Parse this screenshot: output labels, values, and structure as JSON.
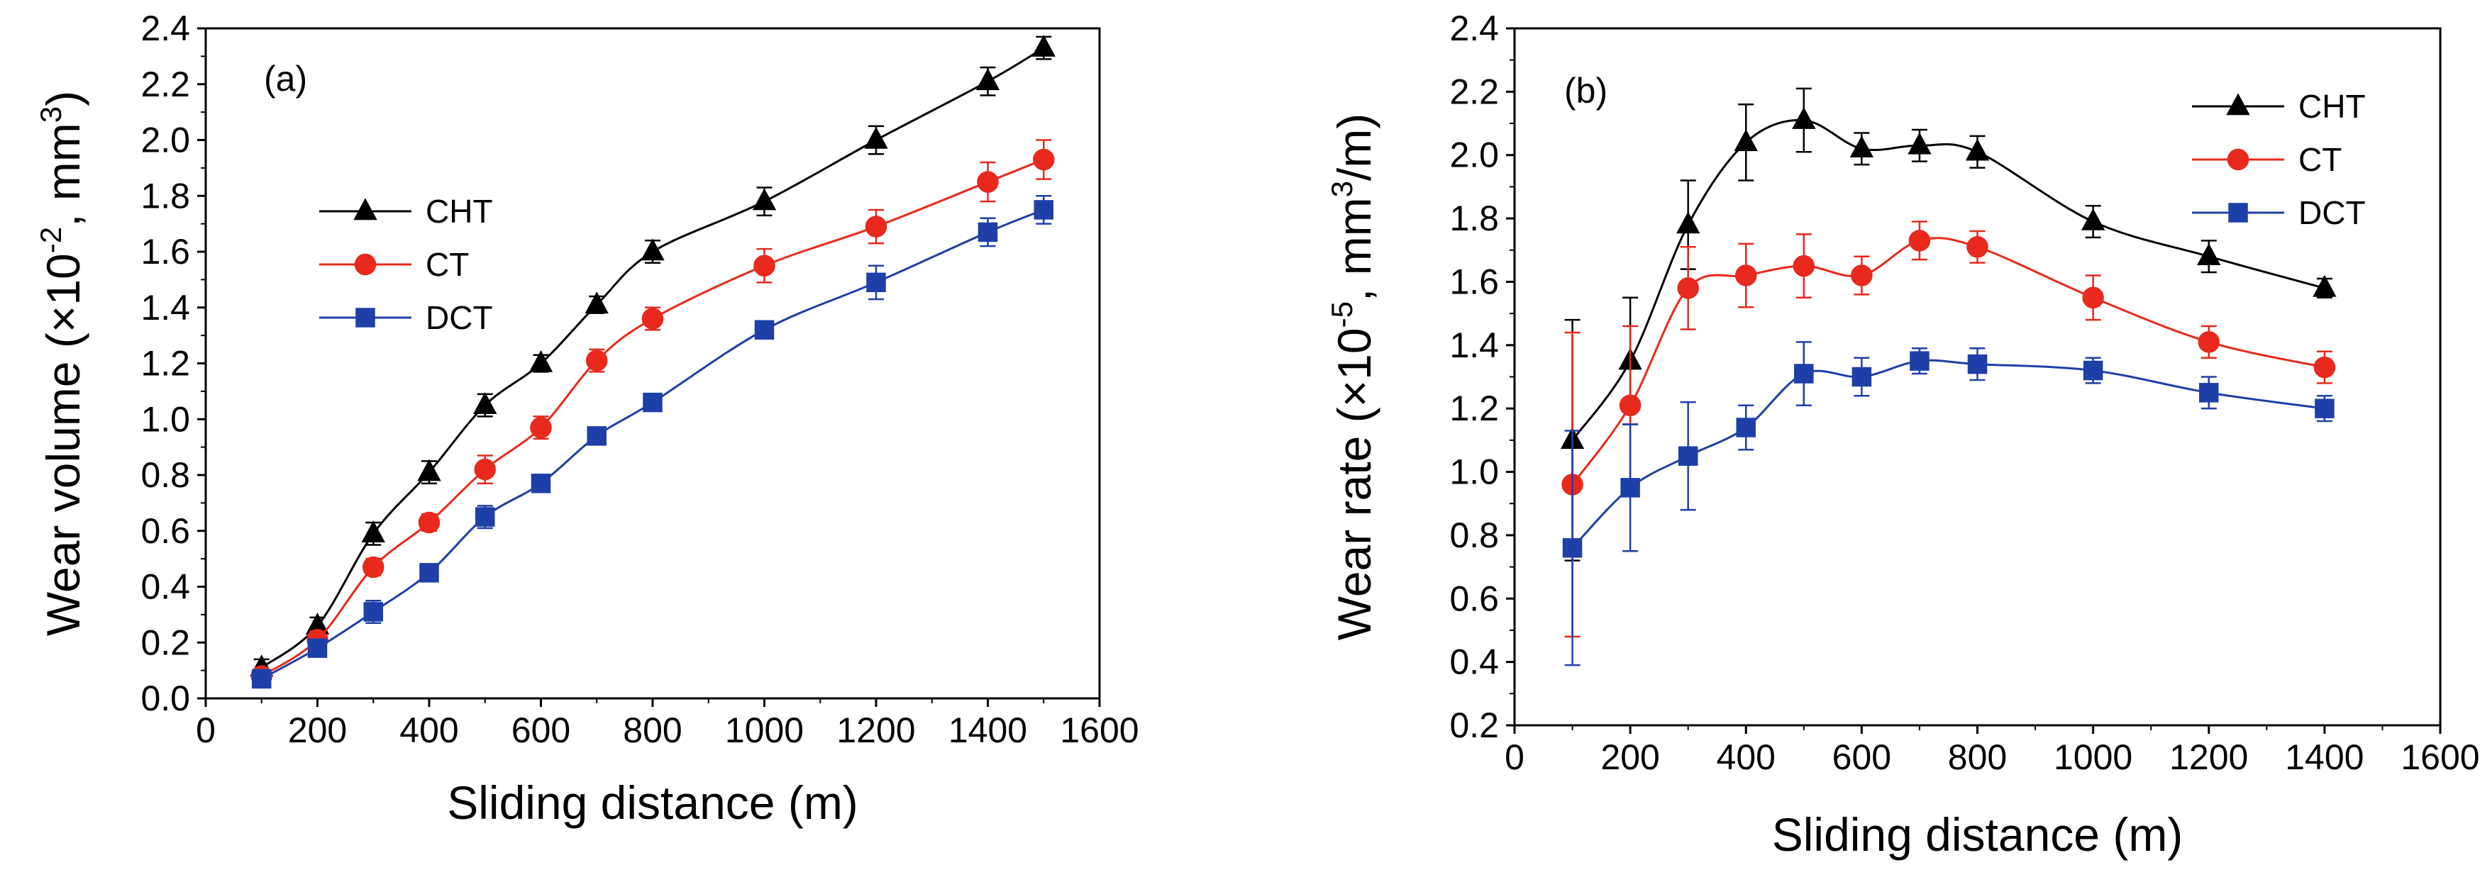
{
  "chart_data": [
    {
      "type": "line",
      "panel_label": "(a)",
      "xlabel": "Sliding distance (m)",
      "ylabel_main": "Wear volume (×10",
      "ylabel_exp1": "-2",
      "ylabel_mid": ", mm",
      "ylabel_exp2": "3",
      "ylabel_end": ")",
      "xlim": [
        0,
        1600
      ],
      "ylim": [
        0,
        2.4
      ],
      "xticks": [
        "0",
        "200",
        "400",
        "600",
        "800",
        "1000",
        "1200",
        "1400",
        "1600"
      ],
      "yticks": [
        "0.0",
        "0.2",
        "0.4",
        "0.6",
        "0.8",
        "1.0",
        "1.2",
        "1.4",
        "1.6",
        "1.8",
        "2.0",
        "2.2",
        "2.4"
      ],
      "legend_position": "middle-left",
      "x": [
        100,
        200,
        300,
        400,
        500,
        600,
        700,
        800,
        1000,
        1200,
        1400,
        1500
      ],
      "series": [
        {
          "name": "CHT",
          "color": "#000000",
          "marker": "triangle",
          "values": [
            0.11,
            0.26,
            0.59,
            0.81,
            1.05,
            1.2,
            1.41,
            1.6,
            1.78,
            2.0,
            2.21,
            2.33
          ],
          "errors": [
            0.03,
            0.03,
            0.04,
            0.04,
            0.04,
            0.03,
            0.03,
            0.04,
            0.05,
            0.05,
            0.05,
            0.04
          ]
        },
        {
          "name": "CT",
          "color": "#e8291c",
          "marker": "circle",
          "values": [
            0.08,
            0.21,
            0.47,
            0.63,
            0.82,
            0.97,
            1.21,
            1.36,
            1.55,
            1.69,
            1.85,
            1.93
          ],
          "errors": [
            0.02,
            0.03,
            0.03,
            0.03,
            0.05,
            0.04,
            0.04,
            0.04,
            0.06,
            0.06,
            0.07,
            0.07
          ]
        },
        {
          "name": "DCT",
          "color": "#1f3fa8",
          "marker": "square",
          "values": [
            0.07,
            0.18,
            0.31,
            0.45,
            0.65,
            0.77,
            0.94,
            1.06,
            1.32,
            1.49,
            1.67,
            1.75
          ],
          "errors": [
            0.02,
            0.03,
            0.04,
            0.02,
            0.04,
            0.03,
            0.02,
            0.03,
            0.03,
            0.06,
            0.05,
            0.05
          ]
        }
      ]
    },
    {
      "type": "line",
      "panel_label": "(b)",
      "xlabel": "Sliding distance (m)",
      "ylabel_main": "Wear rate (×10",
      "ylabel_exp1": "-5",
      "ylabel_mid": ", mm",
      "ylabel_exp2": "3",
      "ylabel_end": "/m)",
      "xlim": [
        0,
        1600
      ],
      "ylim": [
        0.2,
        2.4
      ],
      "xticks": [
        "0",
        "200",
        "400",
        "600",
        "800",
        "1000",
        "1200",
        "1400",
        "1600"
      ],
      "yticks": [
        "0.2",
        "0.4",
        "0.6",
        "0.8",
        "1.0",
        "1.2",
        "1.4",
        "1.6",
        "1.8",
        "2.0",
        "2.2",
        "2.4"
      ],
      "legend_position": "top-right",
      "x": [
        100,
        200,
        300,
        400,
        500,
        600,
        700,
        800,
        1000,
        1200,
        1400
      ],
      "series": [
        {
          "name": "CHT",
          "color": "#000000",
          "marker": "triangle",
          "values": [
            1.1,
            1.35,
            1.78,
            2.04,
            2.11,
            2.02,
            2.03,
            2.01,
            1.79,
            1.68,
            1.58
          ],
          "errors": [
            0.38,
            0.2,
            0.14,
            0.12,
            0.1,
            0.05,
            0.05,
            0.05,
            0.05,
            0.05,
            0.03
          ]
        },
        {
          "name": "CT",
          "color": "#e8291c",
          "marker": "circle",
          "values": [
            0.96,
            1.21,
            1.58,
            1.62,
            1.65,
            1.62,
            1.73,
            1.71,
            1.55,
            1.41,
            1.33
          ],
          "errors": [
            0.48,
            0.25,
            0.13,
            0.1,
            0.1,
            0.06,
            0.06,
            0.05,
            0.07,
            0.05,
            0.05
          ]
        },
        {
          "name": "DCT",
          "color": "#1f3fa8",
          "marker": "square",
          "values": [
            0.76,
            0.95,
            1.05,
            1.14,
            1.31,
            1.3,
            1.35,
            1.34,
            1.32,
            1.25,
            1.2
          ],
          "errors": [
            0.37,
            0.2,
            0.17,
            0.07,
            0.1,
            0.06,
            0.04,
            0.05,
            0.04,
            0.05,
            0.04
          ]
        }
      ]
    }
  ]
}
